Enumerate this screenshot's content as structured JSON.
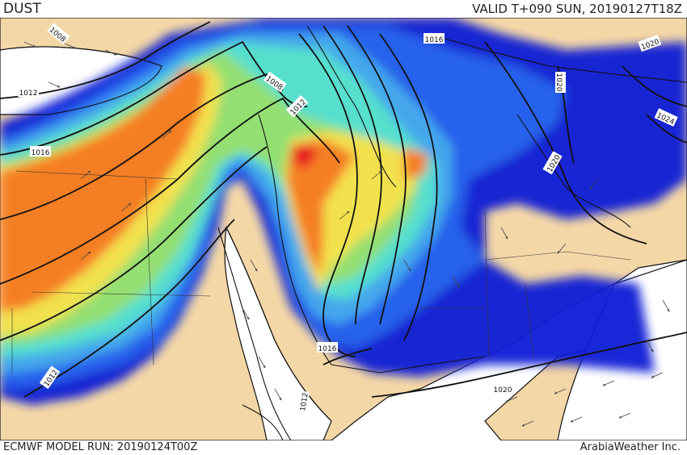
{
  "header": {
    "product": "DUST",
    "valid_time": "VALID T+090 SUN, 20190127T18Z"
  },
  "footer": {
    "model_run": "ECMWF MODEL RUN: 20190124T00Z",
    "credit": "ArabiaWeather Inc."
  },
  "isobar_labels": [
    "1008",
    "1012",
    "1016",
    "1020",
    "1024"
  ],
  "map_labels": [
    {
      "id": "isobar-label-1008-a",
      "text": "1008"
    },
    {
      "id": "isobar-label-1008-b",
      "text": "1008"
    },
    {
      "id": "isobar-label-1012-a",
      "text": "1012"
    },
    {
      "id": "isobar-label-1012-b",
      "text": "1012"
    },
    {
      "id": "isobar-label-1012-c",
      "text": "1012"
    },
    {
      "id": "isobar-label-1012-d",
      "text": "1012"
    },
    {
      "id": "isobar-label-1016-a",
      "text": "1016"
    },
    {
      "id": "isobar-label-1016-b",
      "text": "1016"
    },
    {
      "id": "isobar-label-1016-c",
      "text": "1016"
    },
    {
      "id": "isobar-label-1020-a",
      "text": "1020"
    },
    {
      "id": "isobar-label-1020-b",
      "text": "1020"
    },
    {
      "id": "isobar-label-1020-c",
      "text": "1020"
    },
    {
      "id": "isobar-label-1020-d",
      "text": "1020"
    },
    {
      "id": "isobar-label-1024-a",
      "text": "1024"
    }
  ],
  "colors": {
    "land": "#f4d7a6",
    "dust_low": "#0a1fd6",
    "dust_low2": "#1f5cf0",
    "dust_mid": "#3aa5f0",
    "dust_mid2": "#4fe0d0",
    "dust_green": "#8fe070",
    "dust_yellow": "#f2e24a",
    "dust_orange": "#f57a1d",
    "dust_red": "#e8141a",
    "water_clear": "#ffffff",
    "isobar": "#111111"
  }
}
